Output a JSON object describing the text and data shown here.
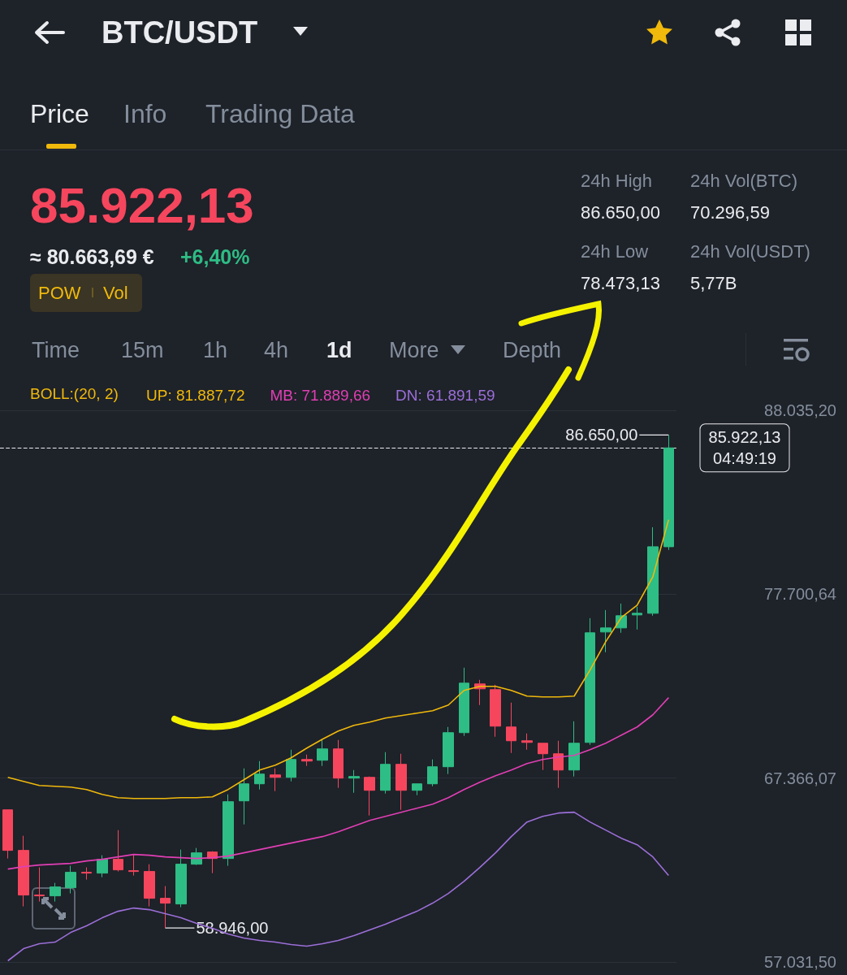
{
  "chart_data": {
    "type": "candlestick",
    "title": "BTC/USDT",
    "categories": [
      null,
      null,
      null,
      null,
      null,
      null,
      null,
      null,
      null,
      null,
      null,
      null,
      null,
      null,
      null,
      null,
      null,
      null,
      null,
      null,
      null,
      null,
      null,
      null,
      null,
      null,
      null,
      null,
      null,
      null,
      null,
      null,
      null,
      null,
      null,
      null,
      null,
      null,
      null,
      null,
      null,
      null,
      null
    ],
    "ohlc": [
      [
        65585,
        65585,
        62848,
        63304
      ],
      [
        63304,
        64125,
        60155,
        60794
      ],
      [
        60794,
        62346,
        60429,
        60749
      ],
      [
        60749,
        61479,
        60429,
        61250
      ],
      [
        61205,
        62437,
        60886,
        62072
      ],
      [
        62072,
        62346,
        61661,
        62026
      ],
      [
        62026,
        63030,
        61798,
        62802
      ],
      [
        62802,
        64444,
        62118,
        62209
      ],
      [
        62163,
        63076,
        61889,
        62118
      ],
      [
        62118,
        62528,
        60155,
        60612
      ],
      [
        60612,
        61296,
        58946,
        60338
      ],
      [
        60292,
        63349,
        60110,
        62528
      ],
      [
        62528,
        63440,
        62483,
        63167
      ],
      [
        63213,
        63258,
        62026,
        62848
      ],
      [
        62848,
        66452,
        62437,
        66041
      ],
      [
        66087,
        67912,
        64764,
        67045
      ],
      [
        67045,
        68323,
        66726,
        67593
      ],
      [
        67547,
        67912,
        66634,
        67410
      ],
      [
        67410,
        68962,
        67182,
        68414
      ],
      [
        68414,
        68688,
        68049,
        68323
      ],
      [
        68369,
        69509,
        68049,
        69007
      ],
      [
        69007,
        69509,
        66817,
        67365
      ],
      [
        67365,
        67821,
        66543,
        67456
      ],
      [
        67410,
        67456,
        65266,
        66680
      ],
      [
        66680,
        68825,
        66498,
        68141
      ],
      [
        68141,
        68734,
        65585,
        66680
      ],
      [
        66680,
        67045,
        66406,
        67045
      ],
      [
        67045,
        68414,
        66908,
        68004
      ],
      [
        68004,
        70239,
        67593,
        69920
      ],
      [
        69920,
        73570,
        69737,
        72704
      ],
      [
        72658,
        72886,
        71472,
        72384
      ],
      [
        72338,
        72612,
        69692,
        70285
      ],
      [
        70239,
        71608,
        68779,
        69464
      ],
      [
        69464,
        69874,
        68962,
        69372
      ],
      [
        69327,
        69327,
        67821,
        68734
      ],
      [
        68734,
        69464,
        66817,
        67821
      ],
      [
        67821,
        70559,
        67456,
        69327
      ],
      [
        69372,
        76354,
        69236,
        75533
      ],
      [
        75578,
        76810,
        74438,
        75806
      ],
      [
        75806,
        77175,
        75533,
        76491
      ],
      [
        76536,
        76993,
        75715,
        76628
      ],
      [
        76628,
        81464,
        76491,
        80369
      ],
      [
        80369,
        86650,
        80187,
        85922.13
      ]
    ],
    "colors": [
      "#f6465d",
      "#f6465d",
      "#f6465d",
      "#2ebd85",
      "#2ebd85",
      "#f6465d",
      "#2ebd85",
      "#f6465d",
      "#f6465d",
      "#f6465d",
      "#f6465d",
      "#2ebd85",
      "#2ebd85",
      "#f6465d",
      "#2ebd85",
      "#2ebd85",
      "#2ebd85",
      "#f6465d",
      "#2ebd85",
      "#f6465d",
      "#2ebd85",
      "#f6465d",
      "#2ebd85",
      "#f6465d",
      "#2ebd85",
      "#f6465d",
      "#2ebd85",
      "#2ebd85",
      "#2ebd85",
      "#2ebd85",
      "#f6465d",
      "#f6465d",
      "#f6465d",
      "#f6465d",
      "#f6465d",
      "#f6465d",
      "#2ebd85",
      "#2ebd85",
      "#2ebd85",
      "#2ebd85",
      "#2ebd85",
      "#2ebd85",
      "#2ebd85"
    ],
    "series": [
      {
        "name": "UP: 81.887,72",
        "type": "line",
        "color": "#f0b90b",
        "values": [
          67410,
          67182,
          66954,
          66908,
          66863,
          66726,
          66452,
          66269,
          66224,
          66224,
          66224,
          66269,
          66269,
          66315,
          66726,
          67273,
          67821,
          68095,
          68505,
          69053,
          69555,
          70011,
          70331,
          70513,
          70741,
          70878,
          71015,
          71152,
          71471,
          72293,
          72521,
          72521,
          72293,
          71973,
          71928,
          71928,
          71973,
          73433,
          75030,
          76399,
          77084,
          78681,
          81887.72
        ]
      },
      {
        "name": "MB: 71.889,66",
        "type": "line",
        "color": "#e13fb4",
        "values": [
          62254,
          62391,
          62482,
          62528,
          62573,
          62710,
          62802,
          62938,
          63075,
          63030,
          62938,
          62893,
          62847,
          62893,
          62984,
          63167,
          63349,
          63532,
          63714,
          63897,
          64079,
          64353,
          64672,
          64992,
          65220,
          65448,
          65676,
          65904,
          66269,
          66726,
          67136,
          67501,
          67821,
          68186,
          68414,
          68551,
          68642,
          68962,
          69327,
          69783,
          70239,
          70924,
          71889.66
        ]
      },
      {
        "name": "DN: 61.891,59",
        "type": "line",
        "color": "#9b6fd8",
        "values": [
          57100,
          57782,
          58056,
          58147,
          58695,
          59060,
          59516,
          59881,
          60064,
          59973,
          59744,
          59516,
          59197,
          58923,
          58604,
          58375,
          58239,
          58147,
          58010,
          57919,
          58056,
          58239,
          58512,
          58832,
          59151,
          59516,
          59881,
          60338,
          60885,
          61570,
          62345,
          63167,
          64079,
          64901,
          65220,
          65403,
          65448,
          64901,
          64444,
          63988,
          63623,
          62938,
          61891.59
        ]
      }
    ],
    "ylim": [
      57031.5,
      88035.2
    ],
    "yticks": [
      {
        "value": 57031.5,
        "label": "57.031,50"
      },
      {
        "value": 67366.07,
        "label": "67.366,07"
      },
      {
        "value": 77700.64,
        "label": "77.700,64"
      },
      {
        "value": 88035.2,
        "label": "88.035,20"
      }
    ],
    "ref_lines": [
      {
        "axis": "y",
        "value": 85922.13,
        "label": "85.922,13",
        "line_style": "dashed",
        "color": "#eaecef"
      }
    ],
    "grid": "y",
    "legend": "top",
    "marker": "none",
    "tick_labels": "y",
    "annotations": [
      "Price",
      "Info",
      "Trading Data",
      "85.922,13",
      "≈ 80.663,69 €",
      "+6,40%",
      "POW",
      "Vol",
      "24h High",
      "86.650,00",
      "24h Vol(BTC)",
      "70.296,59",
      "24h Low",
      "78.473,13",
      "24h Vol(USDT)",
      "5,77B",
      "Time",
      "15m",
      "1h",
      "4h",
      "1d",
      "More",
      "Depth",
      "BOLL:(20, 2)",
      "86.650,00",
      "58.946,00",
      "04:49:19"
    ]
  }
}
